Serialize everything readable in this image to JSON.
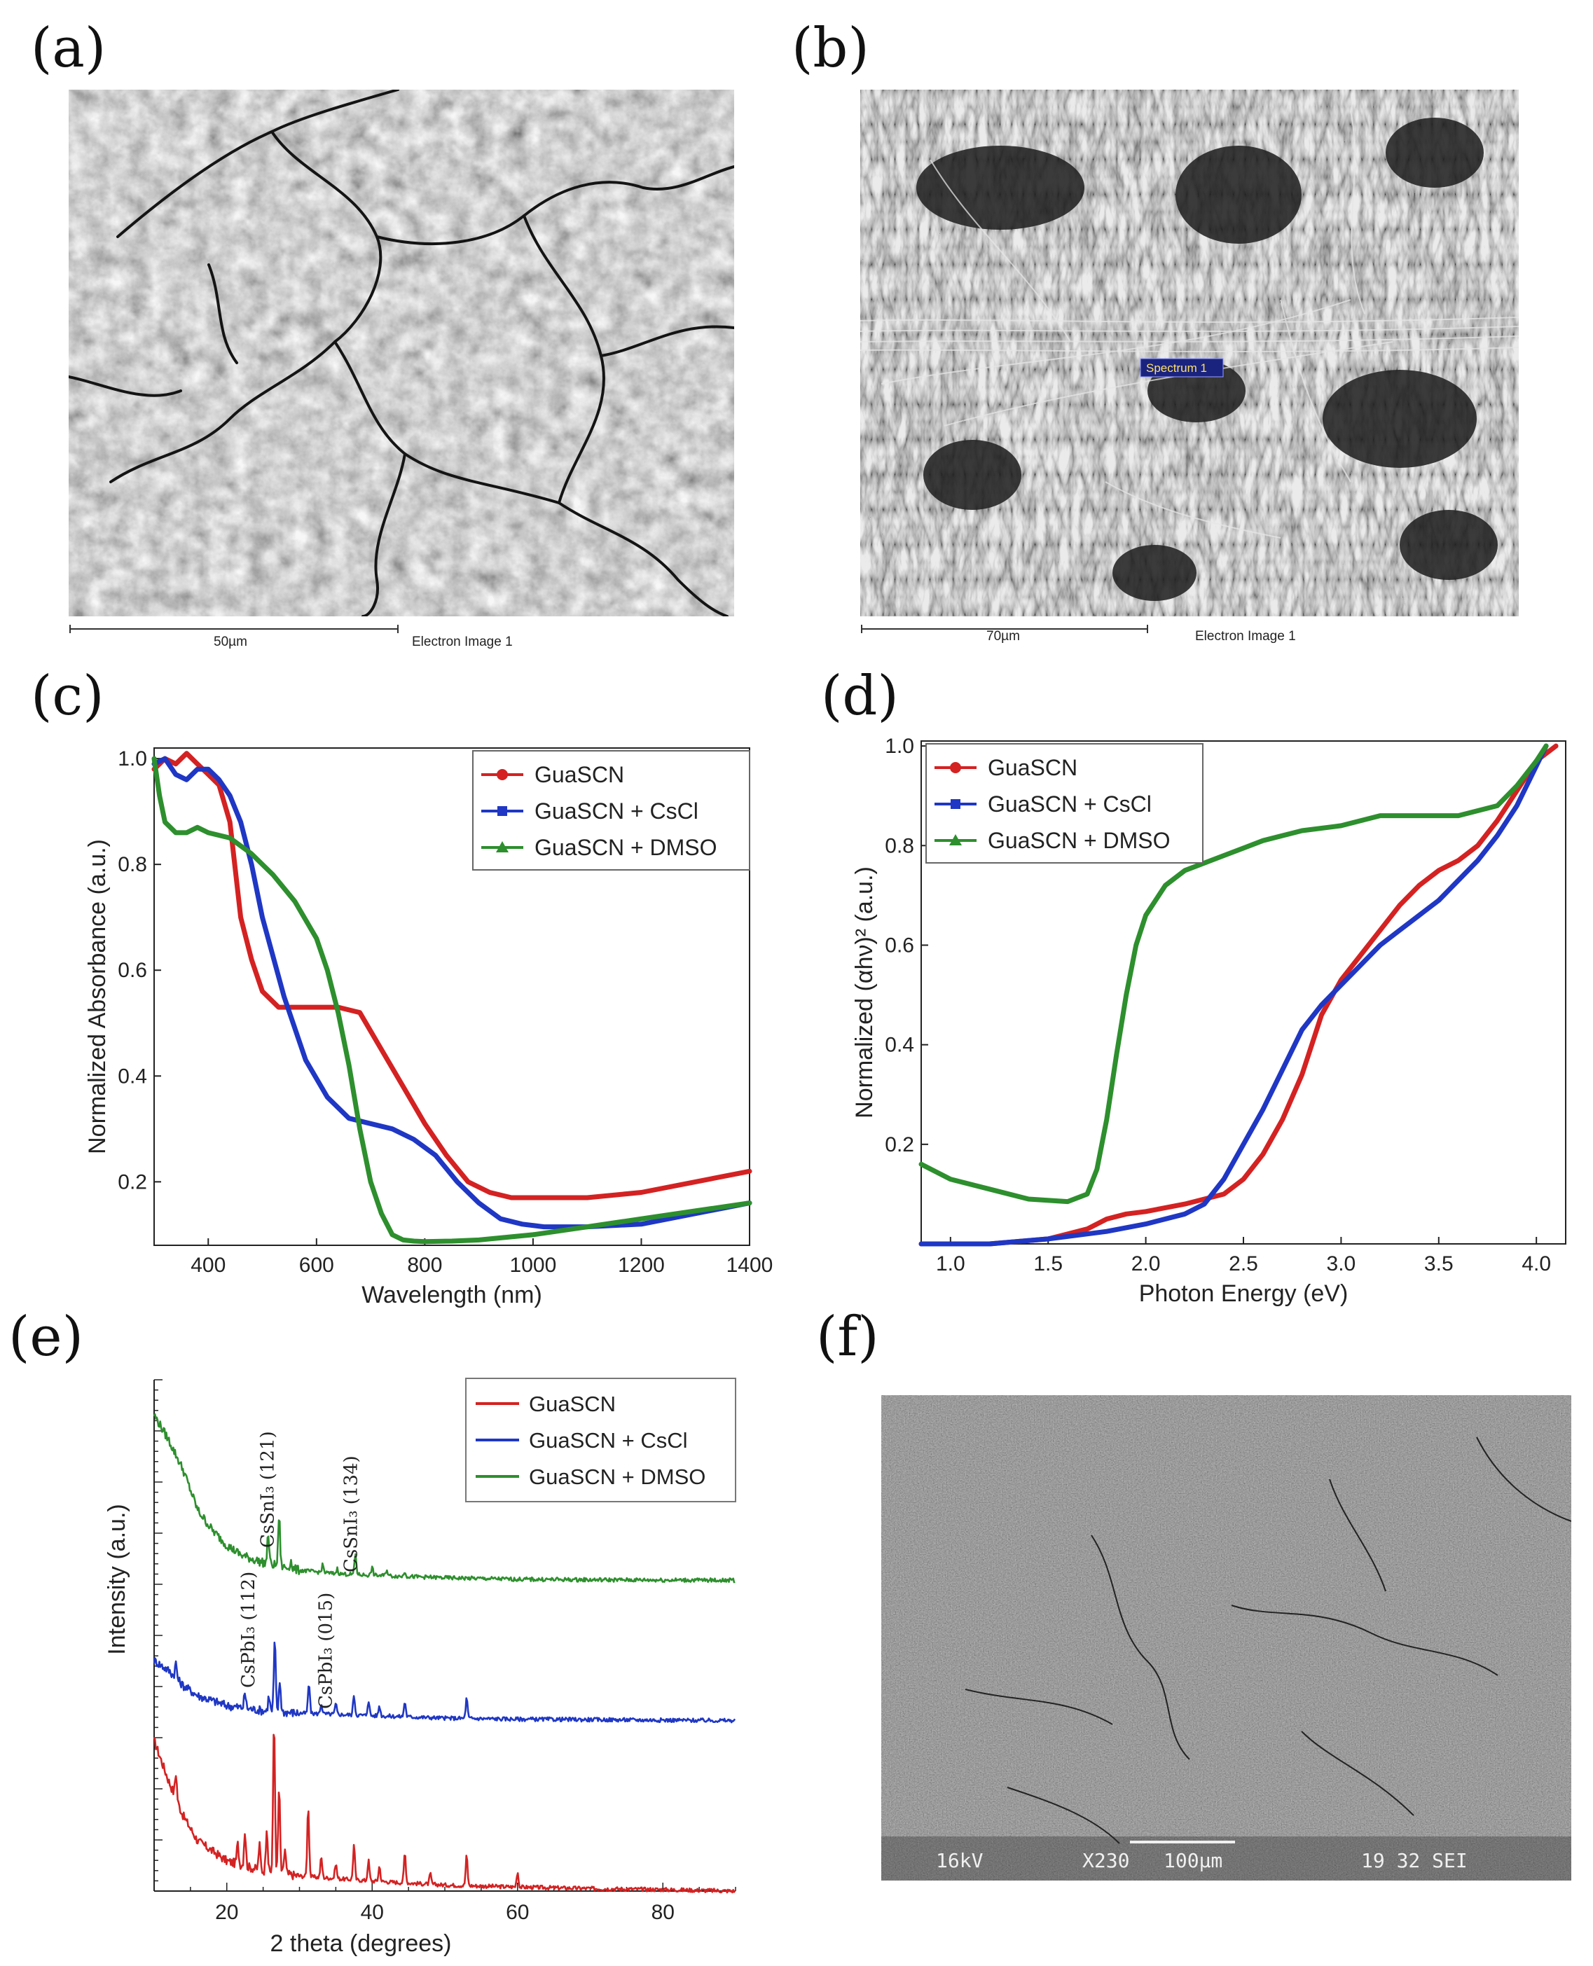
{
  "panels": {
    "a": {
      "letter": "(a)",
      "scale_label": "50µm",
      "caption": "Electron Image 1"
    },
    "b": {
      "letter": "(b)",
      "scale_label": "70µm",
      "caption": "Electron Image 1",
      "spectrum_label": "Spectrum 1"
    },
    "c": {
      "letter": "(c)"
    },
    "d": {
      "letter": "(d)"
    },
    "e": {
      "letter": "(e)"
    },
    "f": {
      "letter": "(f)",
      "kv": "16kV",
      "mag": "X230",
      "scale_label": "100µm",
      "info": "19 32 SEI"
    }
  },
  "colors": {
    "red": "#d42222",
    "blue": "#1f37c4",
    "green": "#2d8f2d"
  },
  "chart_data": [
    {
      "id": "c",
      "type": "line",
      "xlabel": "Wavelength (nm)",
      "ylabel": "Normalized Absorbance (a.u.)",
      "xlim": [
        300,
        1400
      ],
      "ylim": [
        0.08,
        1.02
      ],
      "xticks": [
        400,
        600,
        800,
        1000,
        1200,
        1400
      ],
      "yticks": [
        0.2,
        0.4,
        0.6,
        0.8,
        1.0
      ],
      "ytick_labels": [
        "0.2",
        "0.4",
        "0.6",
        "0.8",
        "1.0"
      ],
      "legend": "top-right",
      "series": [
        {
          "name": "GuaSCN",
          "color": "#d42222",
          "marker": "circle",
          "x": [
            300,
            320,
            340,
            360,
            380,
            400,
            420,
            440,
            460,
            480,
            500,
            530,
            560,
            600,
            640,
            680,
            720,
            760,
            800,
            840,
            880,
            920,
            960,
            1000,
            1100,
            1200,
            1300,
            1400
          ],
          "y": [
            0.98,
            1.0,
            0.99,
            1.01,
            0.99,
            0.97,
            0.95,
            0.88,
            0.7,
            0.62,
            0.56,
            0.53,
            0.53,
            0.53,
            0.53,
            0.52,
            0.45,
            0.38,
            0.31,
            0.25,
            0.2,
            0.18,
            0.17,
            0.17,
            0.17,
            0.18,
            0.2,
            0.22
          ]
        },
        {
          "name": "GuaSCN + CsCl",
          "color": "#1f37c4",
          "marker": "square",
          "x": [
            300,
            320,
            340,
            360,
            380,
            400,
            420,
            440,
            460,
            480,
            500,
            540,
            580,
            620,
            660,
            700,
            740,
            780,
            820,
            860,
            900,
            940,
            980,
            1020,
            1100,
            1200,
            1300,
            1400
          ],
          "y": [
            0.99,
            1.0,
            0.97,
            0.96,
            0.98,
            0.98,
            0.96,
            0.93,
            0.88,
            0.8,
            0.7,
            0.55,
            0.43,
            0.36,
            0.32,
            0.31,
            0.3,
            0.28,
            0.25,
            0.2,
            0.16,
            0.13,
            0.12,
            0.115,
            0.115,
            0.12,
            0.14,
            0.16
          ]
        },
        {
          "name": "GuaSCN + DMSO",
          "color": "#2d8f2d",
          "marker": "triangle",
          "x": [
            300,
            310,
            320,
            330,
            340,
            360,
            380,
            400,
            440,
            480,
            520,
            560,
            600,
            620,
            640,
            660,
            680,
            700,
            720,
            740,
            760,
            780,
            800,
            850,
            900,
            1000,
            1100,
            1200,
            1300,
            1400
          ],
          "y": [
            1.0,
            0.93,
            0.88,
            0.87,
            0.86,
            0.86,
            0.87,
            0.86,
            0.85,
            0.82,
            0.78,
            0.73,
            0.66,
            0.6,
            0.52,
            0.42,
            0.3,
            0.2,
            0.14,
            0.1,
            0.09,
            0.088,
            0.087,
            0.088,
            0.09,
            0.1,
            0.115,
            0.13,
            0.145,
            0.16
          ]
        }
      ]
    },
    {
      "id": "d",
      "type": "line",
      "xlabel": "Photon Energy (eV)",
      "ylabel": "Normalized (αhν)² (a.u.)",
      "xlim": [
        0.85,
        4.15
      ],
      "ylim": [
        0.0,
        1.01
      ],
      "xticks": [
        1.0,
        1.5,
        2.0,
        2.5,
        3.0,
        3.5,
        4.0
      ],
      "xtick_labels": [
        "1.0",
        "1.5",
        "2.0",
        "2.5",
        "3.0",
        "3.5",
        "4.0"
      ],
      "yticks": [
        0.2,
        0.4,
        0.6,
        0.8,
        1.0
      ],
      "ytick_labels": [
        "0.2",
        "0.4",
        "0.6",
        "0.8",
        "1.0"
      ],
      "legend": "top-left",
      "series": [
        {
          "name": "GuaSCN",
          "color": "#d42222",
          "marker": "circle",
          "x": [
            0.85,
            1.2,
            1.5,
            1.7,
            1.8,
            1.9,
            2.0,
            2.2,
            2.4,
            2.5,
            2.6,
            2.7,
            2.8,
            2.85,
            2.9,
            3.0,
            3.1,
            3.2,
            3.3,
            3.4,
            3.5,
            3.6,
            3.7,
            3.8,
            3.9,
            4.0,
            4.1
          ],
          "y": [
            0.0,
            0.0,
            0.01,
            0.03,
            0.05,
            0.06,
            0.065,
            0.08,
            0.1,
            0.13,
            0.18,
            0.25,
            0.34,
            0.4,
            0.46,
            0.53,
            0.58,
            0.63,
            0.68,
            0.72,
            0.75,
            0.77,
            0.8,
            0.85,
            0.91,
            0.97,
            1.0
          ]
        },
        {
          "name": "GuaSCN + CsCl",
          "color": "#1f37c4",
          "marker": "square",
          "x": [
            0.85,
            1.2,
            1.5,
            1.8,
            2.0,
            2.2,
            2.3,
            2.4,
            2.5,
            2.6,
            2.7,
            2.8,
            2.9,
            3.0,
            3.1,
            3.2,
            3.3,
            3.4,
            3.5,
            3.6,
            3.7,
            3.8,
            3.9,
            4.0,
            4.05
          ],
          "y": [
            0.0,
            0.0,
            0.01,
            0.025,
            0.04,
            0.06,
            0.08,
            0.13,
            0.2,
            0.27,
            0.35,
            0.43,
            0.48,
            0.52,
            0.56,
            0.6,
            0.63,
            0.66,
            0.69,
            0.73,
            0.77,
            0.82,
            0.88,
            0.96,
            1.0
          ]
        },
        {
          "name": "GuaSCN + DMSO",
          "color": "#2d8f2d",
          "marker": "triangle",
          "x": [
            0.85,
            1.0,
            1.2,
            1.4,
            1.6,
            1.7,
            1.75,
            1.8,
            1.85,
            1.9,
            1.95,
            2.0,
            2.1,
            2.2,
            2.4,
            2.6,
            2.8,
            3.0,
            3.2,
            3.4,
            3.6,
            3.8,
            3.9,
            4.0,
            4.05
          ],
          "y": [
            0.16,
            0.13,
            0.11,
            0.09,
            0.085,
            0.1,
            0.15,
            0.25,
            0.38,
            0.5,
            0.6,
            0.66,
            0.72,
            0.75,
            0.78,
            0.81,
            0.83,
            0.84,
            0.86,
            0.86,
            0.86,
            0.88,
            0.92,
            0.97,
            1.0
          ]
        }
      ]
    },
    {
      "id": "e",
      "type": "line",
      "xlabel": "2 theta (degrees)",
      "ylabel": "Intensity (a.u.)",
      "xlim": [
        10,
        90
      ],
      "xticks": [
        20,
        40,
        60,
        80
      ],
      "legend": "top-right",
      "annotations": [
        {
          "text": "CsSnI₃ (121)",
          "x": 27.0
        },
        {
          "text": "CsSnI₃ (134)",
          "x": 37.5
        },
        {
          "text": "CsPbI₃ (112)",
          "x": 23.0
        },
        {
          "text": "CsPbI₃ (015)",
          "x": 32.5
        }
      ],
      "series": [
        {
          "name": "GuaSCN",
          "color": "#d42222",
          "offset": 0.0,
          "baseline": [
            [
              10,
              0.3
            ],
            [
              12,
              0.22
            ],
            [
              14,
              0.15
            ],
            [
              16,
              0.1
            ],
            [
              20,
              0.06
            ],
            [
              25,
              0.04
            ],
            [
              30,
              0.03
            ],
            [
              40,
              0.02
            ],
            [
              50,
              0.012
            ],
            [
              60,
              0.008
            ],
            [
              70,
              0.005
            ],
            [
              80,
              0.003
            ],
            [
              90,
              0.0
            ]
          ],
          "peaks": [
            [
              13,
              0.05
            ],
            [
              21.5,
              0.04
            ],
            [
              22.5,
              0.07
            ],
            [
              24.5,
              0.05
            ],
            [
              25.5,
              0.09
            ],
            [
              26.5,
              0.3
            ],
            [
              27.2,
              0.17
            ],
            [
              28,
              0.05
            ],
            [
              31.2,
              0.14
            ],
            [
              33,
              0.04
            ],
            [
              35,
              0.03
            ],
            [
              37.5,
              0.07
            ],
            [
              39.5,
              0.04
            ],
            [
              41,
              0.03
            ],
            [
              44.5,
              0.06
            ],
            [
              48,
              0.02
            ],
            [
              53,
              0.06
            ],
            [
              60,
              0.03
            ]
          ]
        },
        {
          "name": "GuaSCN + CsCl",
          "color": "#1f37c4",
          "offset": 0.34,
          "baseline": [
            [
              10,
              0.12
            ],
            [
              12,
              0.1
            ],
            [
              14,
              0.07
            ],
            [
              16,
              0.05
            ],
            [
              20,
              0.03
            ],
            [
              25,
              0.02
            ],
            [
              30,
              0.015
            ],
            [
              40,
              0.01
            ],
            [
              50,
              0.005
            ],
            [
              60,
              0.003
            ],
            [
              70,
              0.002
            ],
            [
              80,
              0.001
            ],
            [
              90,
              0.0
            ]
          ],
          "peaks": [
            [
              13,
              0.03
            ],
            [
              22.5,
              0.03
            ],
            [
              25.8,
              0.03
            ],
            [
              26.6,
              0.14
            ],
            [
              27.3,
              0.06
            ],
            [
              31.3,
              0.06
            ],
            [
              33,
              0.02
            ],
            [
              35,
              0.02
            ],
            [
              37.5,
              0.04
            ],
            [
              39.5,
              0.03
            ],
            [
              41,
              0.02
            ],
            [
              44.5,
              0.03
            ],
            [
              53,
              0.04
            ]
          ]
        },
        {
          "name": "GuaSCN + DMSO",
          "color": "#2d8f2d",
          "offset": 0.62,
          "baseline": [
            [
              10,
              0.33
            ],
            [
              12,
              0.28
            ],
            [
              14,
              0.22
            ],
            [
              16,
              0.14
            ],
            [
              18,
              0.1
            ],
            [
              20,
              0.07
            ],
            [
              22,
              0.05
            ],
            [
              25,
              0.035
            ],
            [
              30,
              0.02
            ],
            [
              35,
              0.013
            ],
            [
              40,
              0.01
            ],
            [
              50,
              0.005
            ],
            [
              60,
              0.002
            ],
            [
              70,
              0.001
            ],
            [
              90,
              0.0
            ]
          ],
          "peaks": [
            [
              25.7,
              0.06
            ],
            [
              27.2,
              0.1
            ],
            [
              28.8,
              0.015
            ],
            [
              33.2,
              0.015
            ],
            [
              35.2,
              0.01
            ],
            [
              37.7,
              0.04
            ],
            [
              40,
              0.015
            ],
            [
              42,
              0.012
            ],
            [
              44.5,
              0.01
            ]
          ]
        }
      ]
    }
  ]
}
